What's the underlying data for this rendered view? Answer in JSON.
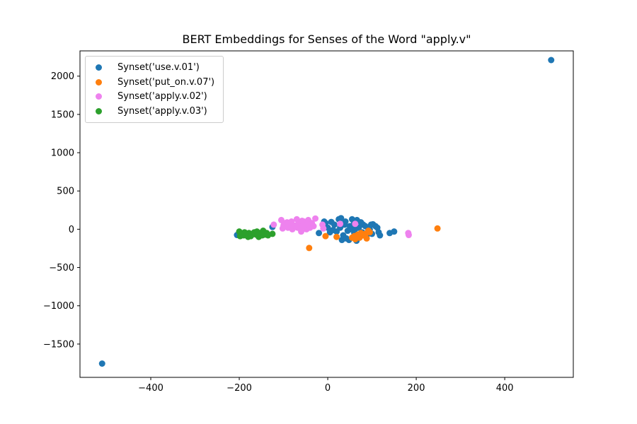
{
  "chart_data": {
    "type": "scatter",
    "title": "BERT Embeddings for Senses of the Word \"apply.v\"",
    "xlabel": "",
    "ylabel": "",
    "xlim": [
      -560,
      555
    ],
    "ylim": [
      -1935,
      2330
    ],
    "xticks": [
      -400,
      -200,
      0,
      200,
      400
    ],
    "yticks": [
      -1500,
      -1000,
      -500,
      0,
      500,
      1000,
      1500,
      2000
    ],
    "xtick_labels": [
      "−400",
      "−200",
      "0",
      "200",
      "400"
    ],
    "ytick_labels": [
      "−1500",
      "−1000",
      "−500",
      "0",
      "500",
      "1000",
      "1500",
      "2000"
    ],
    "grid": false,
    "legend_position": "upper-left",
    "series": [
      {
        "name": "Synset('use.v.01')",
        "color": "#1f77b4",
        "points": [
          [
            505,
            2210
          ],
          [
            -510,
            -1755
          ],
          [
            -205,
            -75
          ],
          [
            -125,
            30
          ],
          [
            -20,
            -50
          ],
          [
            -5,
            80
          ],
          [
            0,
            20
          ],
          [
            5,
            -40
          ],
          [
            8,
            95
          ],
          [
            15,
            60
          ],
          [
            20,
            -30
          ],
          [
            25,
            130
          ],
          [
            28,
            20
          ],
          [
            30,
            145
          ],
          [
            32,
            -140
          ],
          [
            35,
            -80
          ],
          [
            38,
            60
          ],
          [
            40,
            100
          ],
          [
            45,
            -20
          ],
          [
            48,
            -140
          ],
          [
            50,
            40
          ],
          [
            52,
            0
          ],
          [
            55,
            130
          ],
          [
            58,
            60
          ],
          [
            60,
            -50
          ],
          [
            62,
            0
          ],
          [
            65,
            -150
          ],
          [
            66,
            120
          ],
          [
            70,
            20
          ],
          [
            75,
            90
          ],
          [
            78,
            -40
          ],
          [
            80,
            60
          ],
          [
            85,
            40
          ],
          [
            88,
            -80
          ],
          [
            95,
            0
          ],
          [
            98,
            60
          ],
          [
            102,
            65
          ],
          [
            108,
            40
          ],
          [
            112,
            20
          ],
          [
            115,
            -40
          ],
          [
            118,
            -80
          ],
          [
            140,
            -50
          ],
          [
            150,
            -30
          ],
          [
            100,
            -60
          ],
          [
            92,
            -10
          ],
          [
            72,
            -100
          ],
          [
            42,
            -120
          ],
          [
            12,
            -10
          ],
          [
            -8,
            100
          ]
        ]
      },
      {
        "name": "Synset('put_on.v.07')",
        "color": "#ff7f0e",
        "points": [
          [
            248,
            10
          ],
          [
            -42,
            -245
          ],
          [
            -5,
            -90
          ],
          [
            20,
            -100
          ],
          [
            55,
            -110
          ],
          [
            60,
            -90
          ],
          [
            68,
            -70
          ],
          [
            72,
            -110
          ],
          [
            80,
            -80
          ],
          [
            85,
            -60
          ],
          [
            88,
            -120
          ],
          [
            92,
            -20
          ],
          [
            95,
            -40
          ],
          [
            62,
            -130
          ],
          [
            75,
            -50
          ]
        ]
      },
      {
        "name": "Synset('apply.v.02')",
        "color": "#ee82ee",
        "points": [
          [
            -122,
            60
          ],
          [
            -105,
            120
          ],
          [
            -102,
            10
          ],
          [
            -98,
            80
          ],
          [
            -95,
            40
          ],
          [
            -90,
            20
          ],
          [
            -86,
            60
          ],
          [
            -82,
            100
          ],
          [
            -80,
            0
          ],
          [
            -76,
            50
          ],
          [
            -72,
            30
          ],
          [
            -70,
            130
          ],
          [
            -66,
            80
          ],
          [
            -62,
            10
          ],
          [
            -60,
            -30
          ],
          [
            -56,
            40
          ],
          [
            -54,
            100
          ],
          [
            -50,
            60
          ],
          [
            -48,
            0
          ],
          [
            -44,
            120
          ],
          [
            -40,
            20
          ],
          [
            -36,
            80
          ],
          [
            -32,
            40
          ],
          [
            -28,
            140
          ],
          [
            -12,
            60
          ],
          [
            -10,
            10
          ],
          [
            28,
            70
          ],
          [
            62,
            70
          ],
          [
            182,
            -50
          ],
          [
            183,
            -75
          ],
          [
            -100,
            50
          ],
          [
            -92,
            90
          ],
          [
            -68,
            20
          ],
          [
            -58,
            110
          ],
          [
            -46,
            70
          ]
        ]
      },
      {
        "name": "Synset('apply.v.03')",
        "color": "#2ca02c",
        "points": [
          [
            -200,
            -30
          ],
          [
            -198,
            -90
          ],
          [
            -195,
            -60
          ],
          [
            -190,
            -80
          ],
          [
            -185,
            -70
          ],
          [
            -180,
            -100
          ],
          [
            -178,
            -50
          ],
          [
            -174,
            -90
          ],
          [
            -170,
            -60
          ],
          [
            -166,
            -40
          ],
          [
            -162,
            -70
          ],
          [
            -160,
            -30
          ],
          [
            -156,
            -100
          ],
          [
            -152,
            -60
          ],
          [
            -148,
            -80
          ],
          [
            -146,
            -20
          ],
          [
            -142,
            -70
          ],
          [
            -138,
            -50
          ],
          [
            -135,
            -80
          ],
          [
            -125,
            -60
          ],
          [
            -188,
            -40
          ],
          [
            -172,
            -75
          ],
          [
            -158,
            -55
          ],
          [
            -150,
            -45
          ]
        ]
      }
    ]
  }
}
